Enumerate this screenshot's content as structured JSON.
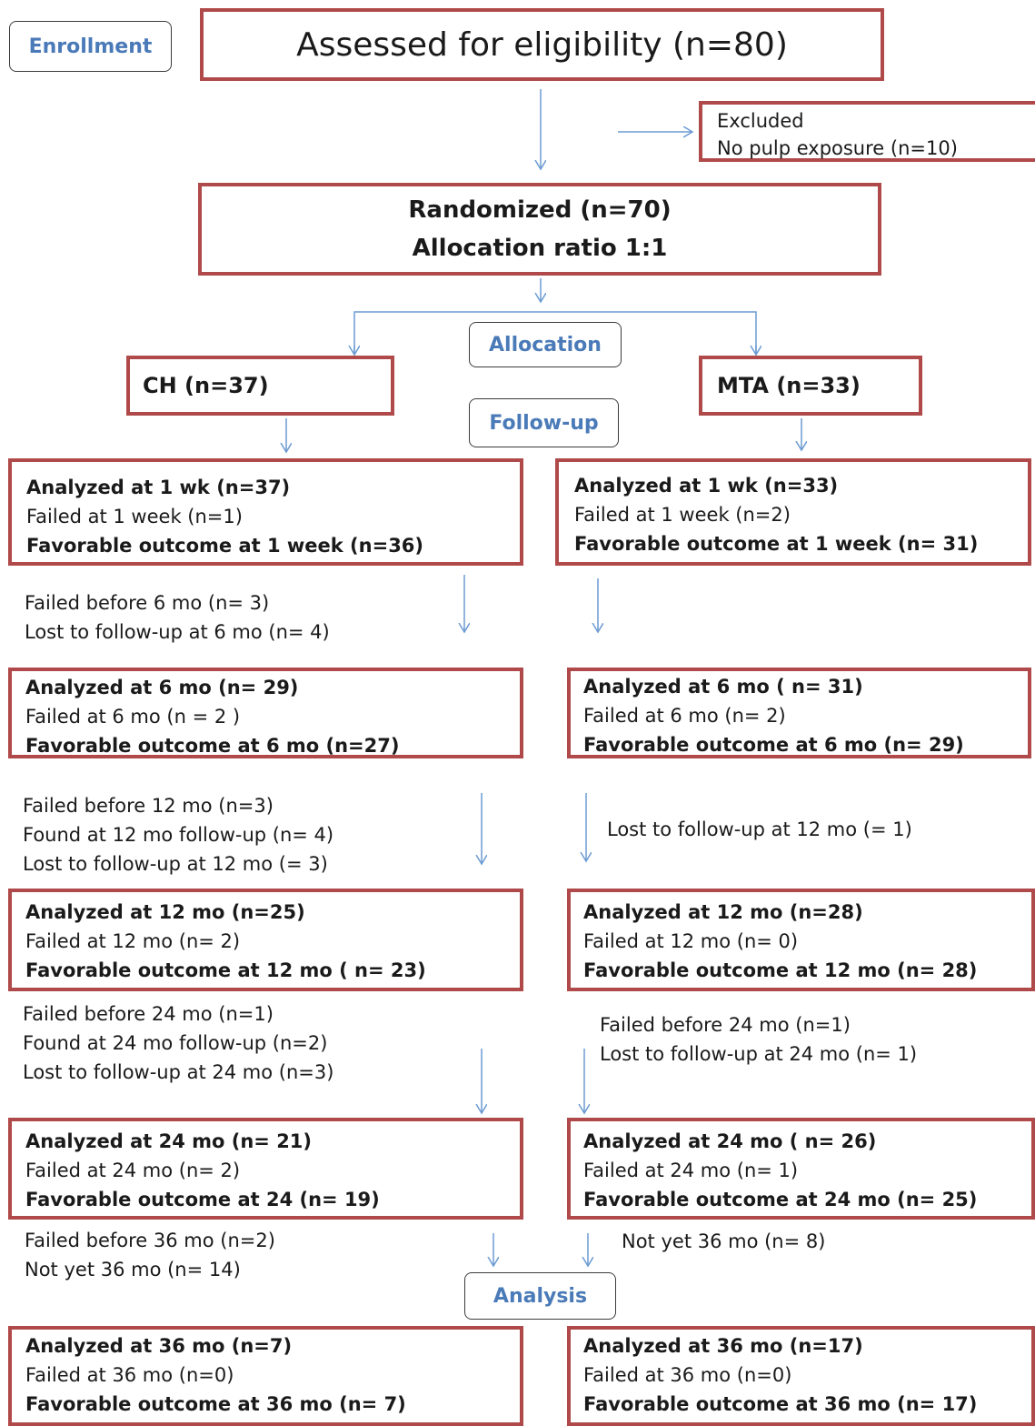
{
  "tags": {
    "enrollment": "Enrollment",
    "allocation": "Allocation",
    "followup": "Follow-up",
    "analysis": "Analysis"
  },
  "assessed": "Assessed for eligibility (n=80)",
  "excluded": {
    "title": "Excluded",
    "reason": "No pulp exposure (n=10)"
  },
  "randomized": {
    "line1": "Randomized  (n=70)",
    "line2": "Allocation  ratio  1:1"
  },
  "groups": {
    "ch": "CH  (n=37)",
    "mta": "MTA (n=33)"
  },
  "ch": {
    "wk1": [
      "Analyzed at  1 wk (n=37)",
      "Failed at 1 week (n=1)",
      "Favorable outcome at 1 week (n=36)"
    ],
    "between6": [
      "Failed before 6 mo (n= 3)",
      "Lost to follow-up  at 6 mo (n= 4)"
    ],
    "mo6": [
      "Analyzed at 6 mo (n= 29)",
      "Failed at 6 mo (n = 2 )",
      "Favorable outcome at 6 mo (n=27)"
    ],
    "between12": [
      "Failed before 12 mo (n=3)",
      "Found at 12 mo follow-up (n= 4)",
      "Lost to follow-up at 12 mo (= 3)"
    ],
    "mo12": [
      "Analyzed at 12 mo (n=25)",
      "Failed at 12 mo (n= 2)",
      "Favorable outcome at 12 mo ( n= 23)"
    ],
    "between24": [
      "Failed before 24 mo (n=1)",
      "Found at 24 mo follow-up (n=2)",
      "Lost to follow-up at 24 mo (n=3)"
    ],
    "mo24": [
      "Analyzed at 24 mo (n= 21)",
      "Failed at 24 mo (n= 2)",
      "Favorable outcome at 24  (n= 19)"
    ],
    "between36": [
      "Failed before 36 mo (n=2)",
      "Not yet 36 mo (n= 14)"
    ],
    "mo36": [
      "Analyzed at 36 mo (n=7)",
      "Failed at 36 mo (n=0)",
      "Favorable outcome at 36 mo (n= 7)"
    ]
  },
  "mta": {
    "wk1": [
      "Analyzed at 1 wk (n=33)",
      "Failed at 1 week (n=2)",
      "Favorable outcome at 1 week (n= 31)"
    ],
    "mo6": [
      "Analyzed at 6 mo ( n= 31)",
      "Failed at 6 mo (n= 2)",
      "Favorable outcome at  6 mo  (n= 29)"
    ],
    "between12": [
      "Lost to follow-up at 12 mo (= 1)"
    ],
    "mo12": [
      "Analyzed at 12 mo (n=28)",
      "Failed at 12 mo (n= 0)",
      "Favorable outcome at 12 mo (n= 28)"
    ],
    "between24": [
      "Failed before 24 mo (n=1)",
      "Lost to follow-up at 24 mo (n= 1)"
    ],
    "mo24": [
      "Analyzed at 24 mo ( n= 26)",
      "Failed at 24 mo (n= 1)",
      "Favorable outcome at 24 mo (n= 25)"
    ],
    "between36": [
      "Not yet 36 mo (n= 8)"
    ],
    "mo36": [
      "Analyzed at 36 mo (n=17)",
      "Failed at 36 mo (n=0)",
      "Favorable outcome at 36 mo   (n= 17)"
    ]
  },
  "colors": {
    "box_border": "#b04a4a",
    "arrow": "#6c9bd2",
    "tag_text": "#4a7ab8"
  }
}
